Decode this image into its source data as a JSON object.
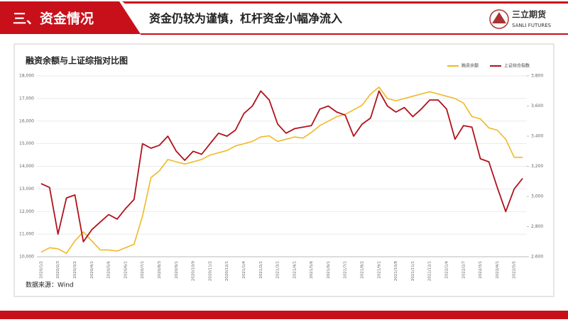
{
  "header": {
    "section": "三、资金情况",
    "headline": "资金仍较为谨慎，杠杆资金小幅净流入",
    "logo_cn": "三立期货",
    "logo_en": "SANLI FUTURES"
  },
  "chart_data": {
    "type": "line",
    "title": "融资余额与上证综指对比图",
    "source": "数据来源：Wind",
    "categories": [
      "2020/1/2",
      null,
      "2020/2/3",
      null,
      "2020/3/2",
      null,
      "2020/4/1",
      null,
      "2020/5/6",
      null,
      "2020/6/1",
      null,
      "2020/7/1",
      null,
      "2020/8/3",
      null,
      "2020/9/1",
      null,
      "2020/10/9",
      null,
      "2020/11/2",
      null,
      "2020/12/1",
      null,
      "2021/1/4",
      null,
      "2021/2/1",
      null,
      "2021/3/1",
      null,
      "2021/4/1",
      null,
      "2021/5/6",
      null,
      "2021/6/1",
      null,
      "2021/7/1",
      null,
      "2021/8/2",
      null,
      "2021/9/1",
      null,
      "2021/10/8",
      null,
      "2021/11/1",
      null,
      "2021/12/1",
      null,
      "2022/1/4",
      null,
      "2022/2/7",
      null,
      "2022/3/1",
      null,
      "2022/4/1",
      null,
      "2022/5/5",
      null
    ],
    "series": [
      {
        "name": "融资余额",
        "color": "#f0b823",
        "values": [
          10200,
          10400,
          10350,
          10150,
          10700,
          11100,
          10700,
          10300,
          10300,
          10250,
          10400,
          10550,
          11800,
          13500,
          13800,
          14300,
          14200,
          14100,
          14200,
          14300,
          14500,
          14600,
          14700,
          14900,
          15000,
          15100,
          15300,
          15350,
          15100,
          15200,
          15300,
          15250,
          15500,
          15800,
          16000,
          16200,
          16300,
          16500,
          16700,
          17200,
          17500,
          17000,
          16900,
          17000,
          17100,
          17200,
          17300,
          17200,
          17100,
          17000,
          16800,
          16200,
          16100,
          15700,
          15600,
          15200,
          14400,
          14400
        ]
      },
      {
        "name": "上证综合指数",
        "color": "#b0121b",
        "axis": "y2",
        "values": [
          3085,
          3060,
          2750,
          2990,
          3010,
          2700,
          2780,
          2830,
          2880,
          2850,
          2920,
          2980,
          3350,
          3320,
          3340,
          3400,
          3300,
          3240,
          3300,
          3280,
          3350,
          3420,
          3400,
          3440,
          3550,
          3600,
          3700,
          3640,
          3480,
          3420,
          3450,
          3460,
          3470,
          3580,
          3600,
          3560,
          3540,
          3400,
          3480,
          3520,
          3700,
          3600,
          3560,
          3590,
          3530,
          3580,
          3640,
          3640,
          3580,
          3380,
          3470,
          3460,
          3250,
          3230,
          3060,
          2900,
          3050,
          3120
        ]
      }
    ],
    "ylim": [
      10000,
      18000
    ],
    "yticks": [
      {
        "value": 10000,
        "label": "10,000"
      },
      {
        "value": 11000,
        "label": "11,000"
      },
      {
        "value": 12000,
        "label": "12,000"
      },
      {
        "value": 13000,
        "label": "13,000"
      },
      {
        "value": 14000,
        "label": "14,000"
      },
      {
        "value": 15000,
        "label": "15,000"
      },
      {
        "value": 16000,
        "label": "16,000"
      },
      {
        "value": 17000,
        "label": "17,000"
      },
      {
        "value": 18000,
        "label": "18,000"
      }
    ],
    "y2lim": [
      2600,
      3800
    ],
    "y2ticks": [
      {
        "value": 2600,
        "label": "2,600"
      },
      {
        "value": 2800,
        "label": "2,800"
      },
      {
        "value": 3000,
        "label": "3,000"
      },
      {
        "value": 3200,
        "label": "3,200"
      },
      {
        "value": 3400,
        "label": "3,400"
      },
      {
        "value": 3600,
        "label": "3,600"
      },
      {
        "value": 3800,
        "label": "3,800"
      }
    ],
    "grid": true,
    "legend": "top-right"
  }
}
